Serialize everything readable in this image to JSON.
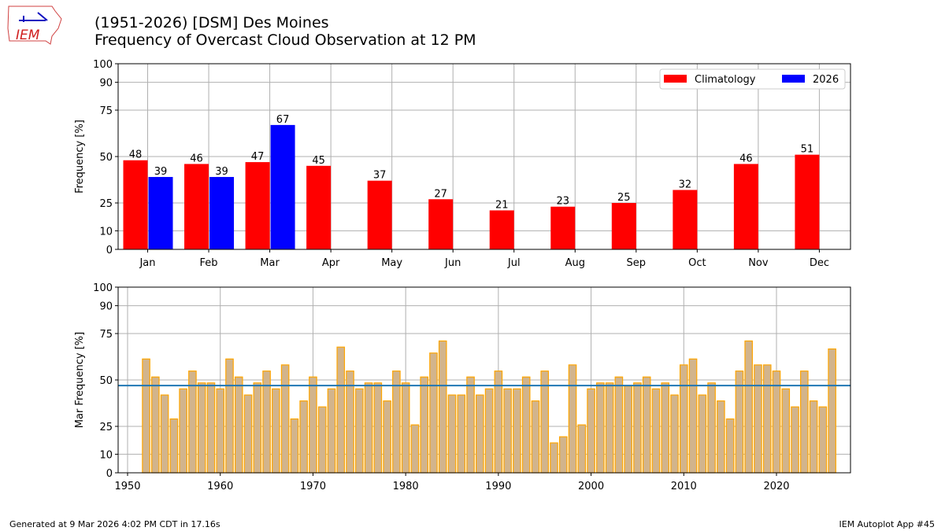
{
  "header": {
    "title_line1": "(1951-2026) [DSM] Des Moines",
    "title_line2": "Frequency of Overcast Cloud Observation at 12 PM",
    "logo_text": "IEM"
  },
  "footer": {
    "left": "Generated at 9 Mar 2026 4:02 PM CDT in 17.16s",
    "right": "IEM Autoplot App #45"
  },
  "colors": {
    "climatology": "#ff0000",
    "current": "#0000ff",
    "yearly_fill": "#d2b48c",
    "yearly_edge": "#ffa500",
    "average_line": "#1f77b4"
  },
  "chart_data": [
    {
      "type": "bar",
      "categories": [
        "Jan",
        "Feb",
        "Mar",
        "Apr",
        "May",
        "Jun",
        "Jul",
        "Aug",
        "Sep",
        "Oct",
        "Nov",
        "Dec"
      ],
      "series": [
        {
          "name": "Climatology",
          "values": [
            48,
            46,
            47,
            45,
            37,
            27,
            21,
            23,
            25,
            32,
            46,
            51
          ]
        },
        {
          "name": "2026",
          "values": [
            39,
            39,
            67,
            null,
            null,
            null,
            null,
            null,
            null,
            null,
            null,
            null
          ]
        }
      ],
      "ylabel": "Frequency [%]",
      "ylim": [
        0,
        100
      ],
      "yticks": [
        0,
        10,
        25,
        50,
        75,
        90,
        100
      ],
      "grid": true,
      "legend": "top-right"
    },
    {
      "type": "bar",
      "x_start": 1952,
      "values": [
        61.3,
        51.6,
        41.9,
        29.0,
        45.2,
        54.8,
        48.4,
        48.4,
        45.2,
        61.3,
        51.6,
        41.9,
        48.4,
        54.8,
        45.2,
        58.1,
        29.0,
        38.7,
        51.6,
        35.5,
        45.2,
        67.7,
        54.8,
        45.2,
        48.4,
        48.4,
        38.7,
        54.8,
        48.4,
        25.8,
        51.6,
        64.5,
        71.0,
        41.9,
        41.9,
        51.6,
        41.9,
        45.2,
        54.8,
        45.2,
        45.2,
        51.6,
        38.7,
        54.8,
        16.1,
        19.4,
        58.1,
        25.8,
        45.2,
        48.4,
        48.4,
        51.6,
        46.7,
        48.4,
        51.6,
        45.2,
        48.4,
        41.9,
        58.1,
        61.3,
        41.9,
        48.4,
        38.7,
        29.0,
        54.8,
        71.0,
        58.1,
        58.1,
        54.8,
        45.2,
        35.5,
        54.8,
        38.7,
        35.5,
        66.7
      ],
      "average": 47,
      "ylabel": "Mar Frequency [%]",
      "ylim": [
        0,
        100
      ],
      "yticks": [
        0,
        10,
        25,
        50,
        75,
        90,
        100
      ],
      "xlim": [
        1949,
        2028
      ],
      "xticks": [
        1950,
        1960,
        1970,
        1980,
        1990,
        2000,
        2010,
        2020
      ],
      "grid": true
    }
  ]
}
